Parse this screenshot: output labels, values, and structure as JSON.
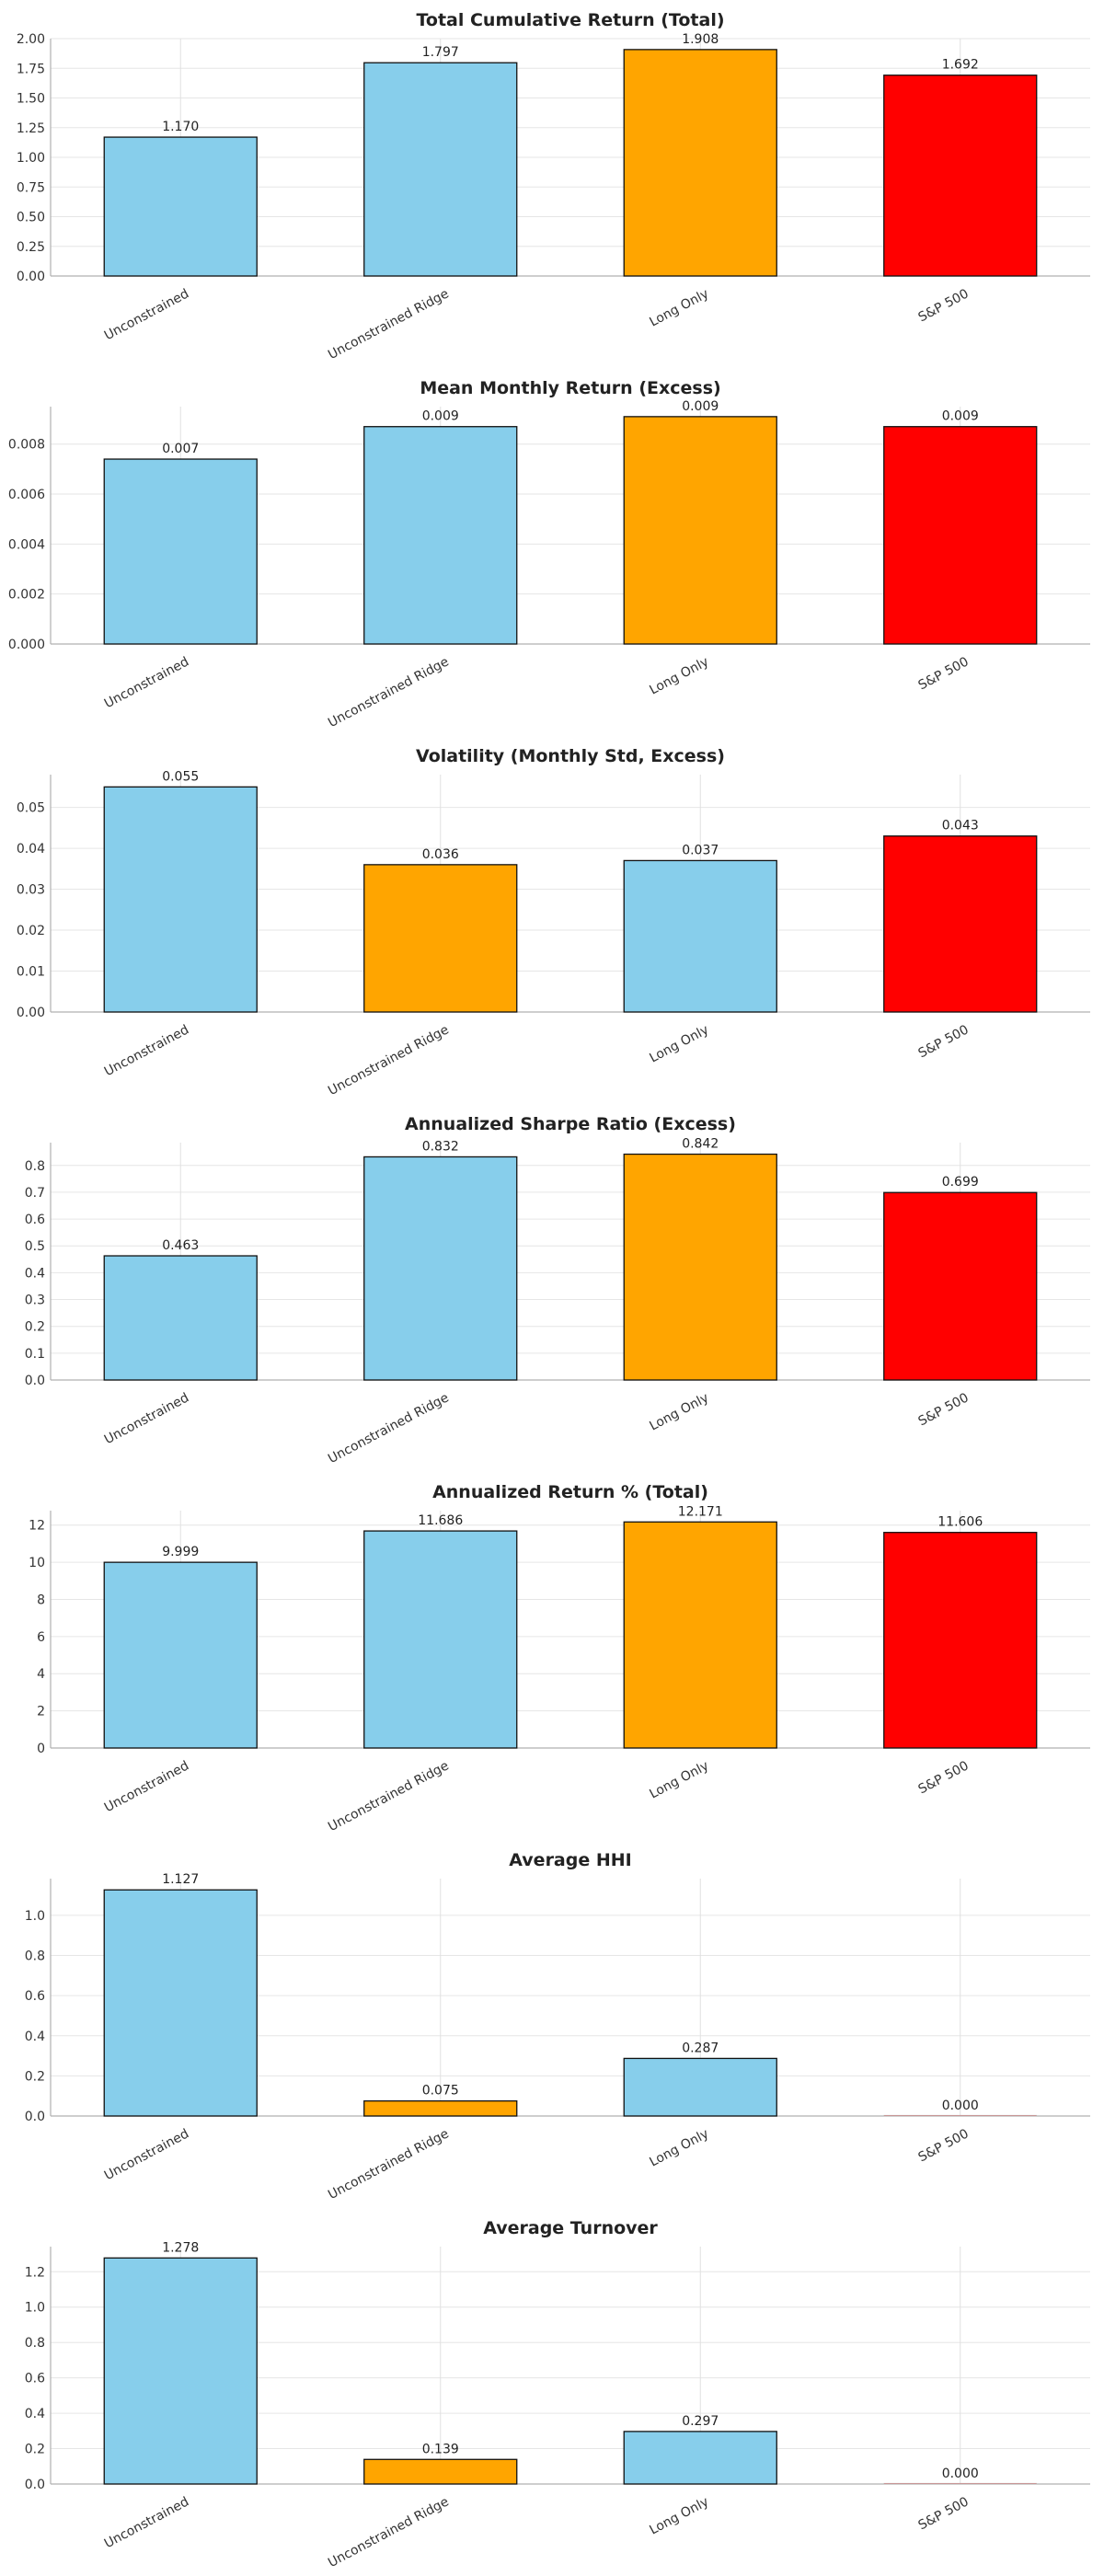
{
  "chart_data": [
    {
      "type": "bar",
      "title": "Total Cumulative Return (Total)",
      "categories": [
        "Unconstrained",
        "Unconstrained Ridge",
        "Long Only",
        "S&P 500"
      ],
      "values": [
        1.17,
        1.797,
        1.908,
        1.692
      ],
      "value_labels": [
        "1.170",
        "1.797",
        "1.908",
        "1.692"
      ],
      "bar_colors": [
        "#87CEEB",
        "#87CEEB",
        "#FFA500",
        "#FF0000"
      ],
      "ylim": [
        0,
        2.0
      ],
      "yticks": [
        0,
        0.25,
        0.5,
        0.75,
        1.0,
        1.25,
        1.5,
        1.75,
        2.0
      ],
      "ytick_labels": [
        "0.00",
        "0.25",
        "0.50",
        "0.75",
        "1.00",
        "1.25",
        "1.50",
        "1.75",
        "2.00"
      ],
      "grid": true
    },
    {
      "type": "bar",
      "title": "Mean Monthly Return (Excess)",
      "categories": [
        "Unconstrained",
        "Unconstrained Ridge",
        "Long Only",
        "S&P 500"
      ],
      "values": [
        0.0074,
        0.0087,
        0.0091,
        0.0087
      ],
      "value_labels": [
        "0.007",
        "0.009",
        "0.009",
        "0.009"
      ],
      "bar_colors": [
        "#87CEEB",
        "#87CEEB",
        "#FFA500",
        "#FF0000"
      ],
      "ylim": [
        0,
        0.0095
      ],
      "yticks": [
        0,
        0.002,
        0.004,
        0.006,
        0.008
      ],
      "ytick_labels": [
        "0.000",
        "0.002",
        "0.004",
        "0.006",
        "0.008"
      ],
      "grid": true
    },
    {
      "type": "bar",
      "title": "Volatility (Monthly Std, Excess)",
      "categories": [
        "Unconstrained",
        "Unconstrained Ridge",
        "Long Only",
        "S&P 500"
      ],
      "values": [
        0.055,
        0.036,
        0.037,
        0.043
      ],
      "value_labels": [
        "0.055",
        "0.036",
        "0.037",
        "0.043"
      ],
      "bar_colors": [
        "#87CEEB",
        "#FFA500",
        "#87CEEB",
        "#FF0000"
      ],
      "ylim": [
        0,
        0.058
      ],
      "yticks": [
        0,
        0.01,
        0.02,
        0.03,
        0.04,
        0.05
      ],
      "ytick_labels": [
        "0.00",
        "0.01",
        "0.02",
        "0.03",
        "0.04",
        "0.05"
      ],
      "grid": true
    },
    {
      "type": "bar",
      "title": "Annualized Sharpe Ratio (Excess)",
      "categories": [
        "Unconstrained",
        "Unconstrained Ridge",
        "Long Only",
        "S&P 500"
      ],
      "values": [
        0.463,
        0.832,
        0.842,
        0.699
      ],
      "value_labels": [
        "0.463",
        "0.832",
        "0.842",
        "0.699"
      ],
      "bar_colors": [
        "#87CEEB",
        "#87CEEB",
        "#FFA500",
        "#FF0000"
      ],
      "ylim": [
        0,
        0.885
      ],
      "yticks": [
        0,
        0.1,
        0.2,
        0.3,
        0.4,
        0.5,
        0.6,
        0.7,
        0.8
      ],
      "ytick_labels": [
        "0.0",
        "0.1",
        "0.2",
        "0.3",
        "0.4",
        "0.5",
        "0.6",
        "0.7",
        "0.8"
      ],
      "grid": true
    },
    {
      "type": "bar",
      "title": "Annualized Return % (Total)",
      "categories": [
        "Unconstrained",
        "Unconstrained Ridge",
        "Long Only",
        "S&P 500"
      ],
      "values": [
        9.999,
        11.686,
        12.171,
        11.606
      ],
      "value_labels": [
        "9.999",
        "11.686",
        "12.171",
        "11.606"
      ],
      "bar_colors": [
        "#87CEEB",
        "#87CEEB",
        "#FFA500",
        "#FF0000"
      ],
      "ylim": [
        0,
        12.78
      ],
      "yticks": [
        0,
        2,
        4,
        6,
        8,
        10,
        12
      ],
      "ytick_labels": [
        "0",
        "2",
        "4",
        "6",
        "8",
        "10",
        "12"
      ],
      "grid": true
    },
    {
      "type": "bar",
      "title": "Average HHI",
      "categories": [
        "Unconstrained",
        "Unconstrained Ridge",
        "Long Only",
        "S&P 500"
      ],
      "values": [
        1.127,
        0.075,
        0.287,
        0.0
      ],
      "value_labels": [
        "1.127",
        "0.075",
        "0.287",
        "0.000"
      ],
      "bar_colors": [
        "#87CEEB",
        "#FFA500",
        "#87CEEB",
        "#FF0000"
      ],
      "ylim": [
        0,
        1.183
      ],
      "yticks": [
        0,
        0.2,
        0.4,
        0.6,
        0.8,
        1.0
      ],
      "ytick_labels": [
        "0.0",
        "0.2",
        "0.4",
        "0.6",
        "0.8",
        "1.0"
      ],
      "grid": true
    },
    {
      "type": "bar",
      "title": "Average Turnover",
      "categories": [
        "Unconstrained",
        "Unconstrained Ridge",
        "Long Only",
        "S&P 500"
      ],
      "values": [
        1.278,
        0.139,
        0.297,
        0.0
      ],
      "value_labels": [
        "1.278",
        "0.139",
        "0.297",
        "0.000"
      ],
      "bar_colors": [
        "#87CEEB",
        "#FFA500",
        "#87CEEB",
        "#FF0000"
      ],
      "ylim": [
        0,
        1.342
      ],
      "yticks": [
        0,
        0.2,
        0.4,
        0.6,
        0.8,
        1.0,
        1.2
      ],
      "ytick_labels": [
        "0.0",
        "0.2",
        "0.4",
        "0.6",
        "0.8",
        "1.0",
        "1.2"
      ],
      "grid": true
    }
  ]
}
